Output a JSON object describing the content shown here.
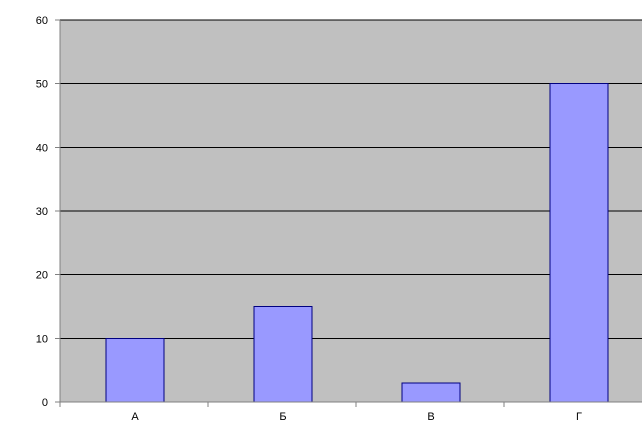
{
  "chart_data": {
    "type": "bar",
    "categories": [
      "А",
      "Б",
      "В",
      "Г"
    ],
    "values": [
      10,
      15,
      3,
      50
    ],
    "ylim": [
      0,
      60
    ],
    "yticks": [
      0,
      10,
      20,
      30,
      40,
      50,
      60
    ],
    "grid": true,
    "legend": "none",
    "colors": {
      "bar_fill": "#9999ff",
      "bar_stroke": "#000080",
      "plot_background": "#c0c0c0",
      "grid": "#000000",
      "axis": "#808080"
    }
  }
}
